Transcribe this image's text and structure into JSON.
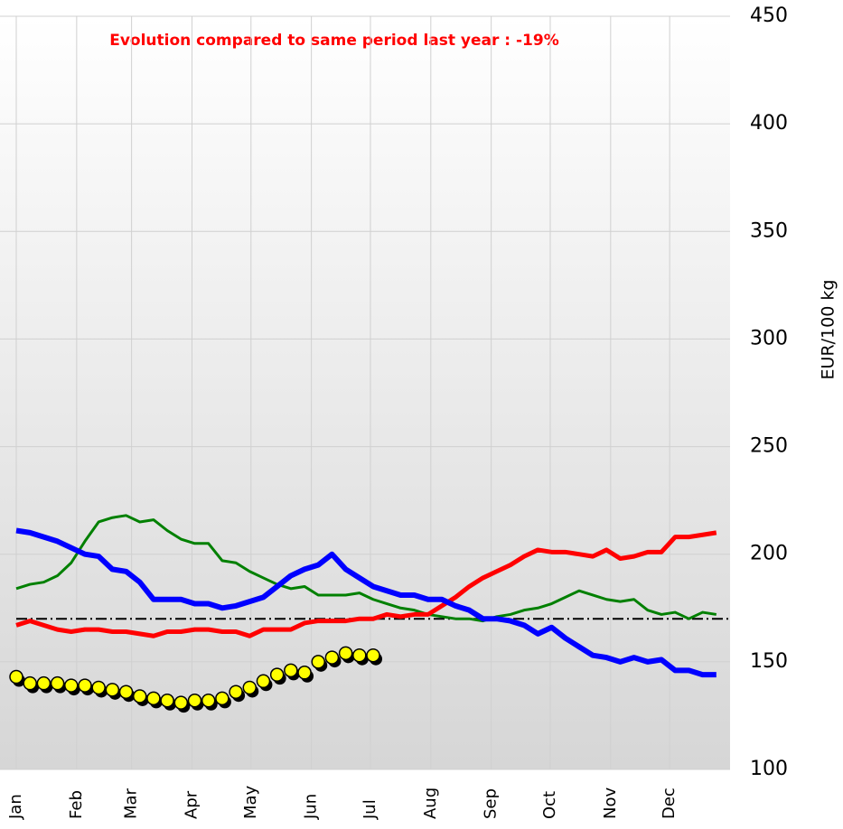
{
  "chart_data": {
    "type": "line",
    "title": "Evolution compared to same period last year : -19%",
    "title_color": "#ff0000",
    "y_label": "EUR/100 kg",
    "x": [
      1,
      2,
      3,
      4,
      5,
      6,
      7,
      8,
      9,
      10,
      11,
      12,
      13,
      14,
      15,
      16,
      17,
      18,
      19,
      20,
      21,
      22,
      23,
      24,
      25,
      26,
      27,
      28,
      29,
      30,
      31,
      32,
      33,
      34,
      35,
      36,
      37,
      38,
      39,
      40,
      41,
      42,
      43,
      44,
      45,
      46,
      47,
      48,
      49,
      50,
      51,
      52
    ],
    "xlim": [
      1,
      53
    ],
    "xticks": [
      {
        "value": 1,
        "label": "Jan"
      },
      {
        "value": 5.4,
        "label": "Feb"
      },
      {
        "value": 9.4,
        "label": "Mar"
      },
      {
        "value": 13.8,
        "label": "Apr"
      },
      {
        "value": 18.1,
        "label": "May"
      },
      {
        "value": 22.5,
        "label": "Jun"
      },
      {
        "value": 26.8,
        "label": "Jul"
      },
      {
        "value": 31.2,
        "label": "Aug"
      },
      {
        "value": 35.6,
        "label": "Sep"
      },
      {
        "value": 39.9,
        "label": "Oct"
      },
      {
        "value": 44.3,
        "label": "Nov"
      },
      {
        "value": 48.6,
        "label": "Dec"
      }
    ],
    "ylim": [
      100,
      450
    ],
    "yticks": [
      100,
      150,
      200,
      250,
      300,
      350,
      400,
      450
    ],
    "grid": true,
    "reference_line": {
      "value": 170,
      "color": "#000000"
    },
    "series": [
      {
        "color": "#008000",
        "width": 3,
        "values": [
          184,
          186,
          187,
          190,
          196,
          206,
          215,
          217,
          218,
          215,
          216,
          211,
          207,
          205,
          205,
          197,
          196,
          192,
          189,
          186,
          184,
          185,
          181,
          181,
          181,
          182,
          179,
          177,
          175,
          174,
          172,
          171,
          170,
          170,
          169,
          171,
          172,
          174,
          175,
          177,
          180,
          183,
          181,
          179,
          178,
          179,
          174,
          172,
          173,
          170,
          173,
          172
        ]
      },
      {
        "color": "#ff0000",
        "width": 5,
        "values": [
          167,
          169,
          167,
          165,
          164,
          165,
          165,
          164,
          164,
          163,
          162,
          164,
          164,
          165,
          165,
          164,
          164,
          162,
          165,
          165,
          165,
          168,
          169,
          169,
          169,
          170,
          170,
          172,
          171,
          172,
          172,
          176,
          180,
          185,
          189,
          192,
          195,
          199,
          202,
          201,
          201,
          200,
          199,
          202,
          198,
          199,
          201,
          201,
          208,
          208,
          209,
          210
        ]
      },
      {
        "color": "#0000ff",
        "width": 6,
        "values": [
          211,
          210,
          208,
          206,
          203,
          200,
          199,
          193,
          192,
          187,
          179,
          179,
          179,
          177,
          177,
          175,
          176,
          178,
          180,
          185,
          190,
          193,
          195,
          200,
          193,
          189,
          185,
          183,
          181,
          181,
          179,
          179,
          176,
          174,
          170,
          170,
          169,
          167,
          163,
          166,
          161,
          157,
          153,
          152,
          150,
          152,
          150,
          151,
          146,
          146,
          144,
          144
        ]
      },
      {
        "color": "#ffff00",
        "markers": true,
        "values": [
          143,
          140,
          140,
          140,
          139,
          139,
          138,
          137,
          136,
          134,
          133,
          132,
          131,
          132,
          132,
          133,
          136,
          138,
          141,
          144,
          146,
          145,
          150,
          152,
          154,
          153,
          153,
          null,
          null,
          null,
          null,
          null,
          null,
          null,
          null,
          null,
          null,
          null,
          null,
          null,
          null,
          null,
          null,
          null,
          null,
          null,
          null,
          null,
          null,
          null,
          null,
          null
        ]
      }
    ]
  }
}
